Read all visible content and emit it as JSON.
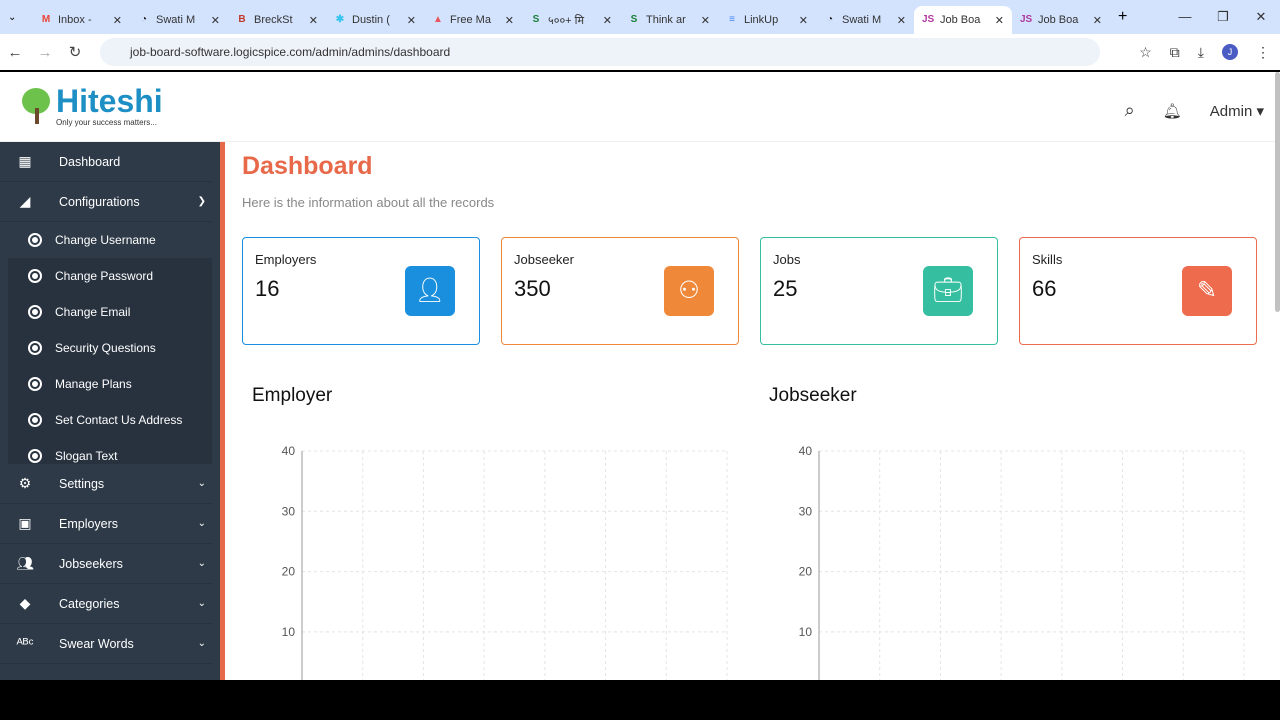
{
  "browser": {
    "tabs": [
      {
        "title": "Inbox -",
        "icon": "M",
        "color": "#ea4335"
      },
      {
        "title": "Swati M",
        "icon": "◔",
        "color": "#222"
      },
      {
        "title": "BreckSt",
        "icon": "B",
        "color": "#c0392b"
      },
      {
        "title": "Dustin (",
        "icon": "✱",
        "color": "#36c5f0"
      },
      {
        "title": "Free Ma",
        "icon": "▲",
        "color": "#e8575f"
      },
      {
        "title": "५००+ मि",
        "icon": "S",
        "color": "#188038"
      },
      {
        "title": "Think ar",
        "icon": "S",
        "color": "#188038"
      },
      {
        "title": "LinkUp",
        "icon": "≡",
        "color": "#4285f4"
      },
      {
        "title": "Swati M",
        "icon": "◔",
        "color": "#222"
      },
      {
        "title": "Job Boa",
        "icon": "JS",
        "color": "#b03aa0",
        "active": true
      },
      {
        "title": "Job Boa",
        "icon": "JS",
        "color": "#b03aa0"
      }
    ],
    "url": "job-board-software.logicspice.com/admin/admins/dashboard",
    "profile_initial": "J"
  },
  "header": {
    "brand": "Hiteshi",
    "tagline": "Only your success matters...",
    "user": "Admin"
  },
  "sidebar": {
    "items_top": [
      {
        "label": "Dashboard",
        "icon": "dashboard-icon"
      },
      {
        "label": "Configurations",
        "icon": "config-icon"
      }
    ],
    "sub": [
      "Change Username",
      "Change Password",
      "Change Email",
      "Security Questions",
      "Manage Plans",
      "Set Contact Us Address",
      "Slogan Text"
    ],
    "items_bottom": [
      {
        "label": "Settings"
      },
      {
        "label": "Employers"
      },
      {
        "label": "Jobseekers"
      },
      {
        "label": "Categories"
      },
      {
        "label": "Swear Words"
      }
    ]
  },
  "main": {
    "title": "Dashboard",
    "subtitle": "Here is the information about all the records",
    "cards": [
      {
        "label": "Employers",
        "value": "16",
        "color": "#1a8fdd"
      },
      {
        "label": "Jobseeker",
        "value": "350",
        "color": "#f0883a"
      },
      {
        "label": "Jobs",
        "value": "25",
        "color": "#35bfa0"
      },
      {
        "label": "Skills",
        "value": "66",
        "color": "#ee6b4d"
      }
    ]
  },
  "chart_data": [
    {
      "type": "bar",
      "title": "Employer",
      "ylim": [
        0,
        40
      ],
      "yticks": [
        "40",
        "30",
        "20",
        "10"
      ],
      "grid": true,
      "series": []
    },
    {
      "type": "bar",
      "title": "Jobseeker",
      "ylim": [
        0,
        40
      ],
      "yticks": [
        "40",
        "30",
        "20",
        "10"
      ],
      "grid": true,
      "series": []
    }
  ]
}
